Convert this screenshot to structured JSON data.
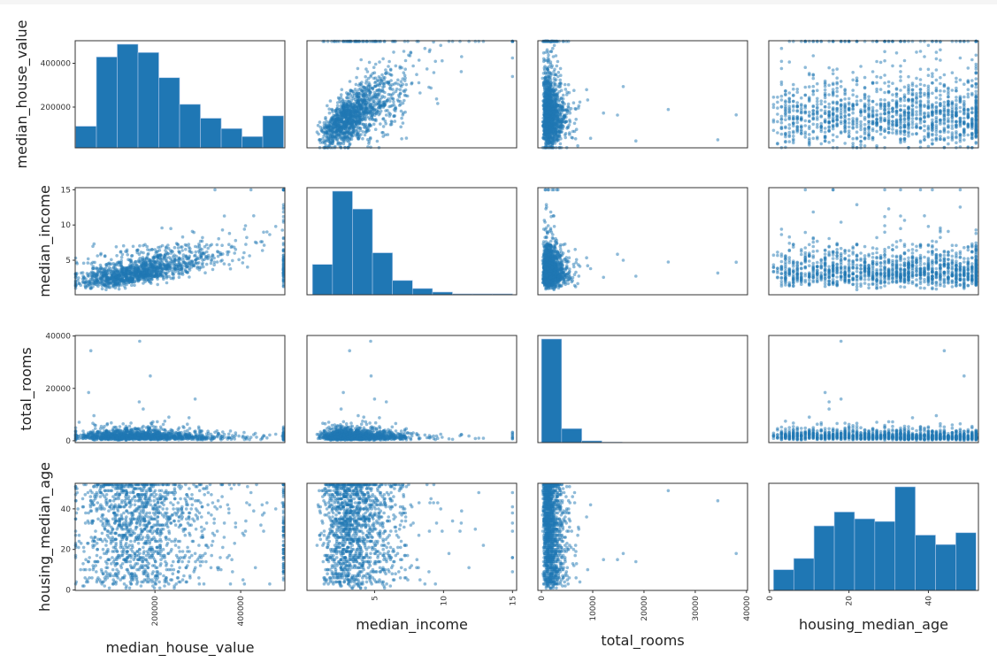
{
  "chart_data": {
    "type": "scatter",
    "layout": "scatter-matrix",
    "diagonal": "histogram",
    "color": "#1f77b4",
    "point_alpha": 0.5,
    "grid": false,
    "variables": [
      {
        "name": "median_house_value",
        "range": [
          14000,
          503000
        ],
        "ticks": [
          200000,
          400000
        ],
        "tick_labels": [
          "200000",
          "400000"
        ],
        "hist_bins": [
          14999,
          500001
        ],
        "hist_counts": [
          862,
          3626,
          4134,
          3803,
          2799,
          1736,
          1181,
          768,
          449,
          1276
        ]
      },
      {
        "name": "median_income",
        "range": [
          0.1,
          15.3
        ],
        "ticks": [
          5,
          10,
          15
        ],
        "tick_labels": [
          "5",
          "10",
          "15"
        ],
        "hist_bins": [
          0.5,
          15.0
        ],
        "hist_counts": [
          2176,
          7424,
          6144,
          3008,
          1024,
          448,
          192,
          64,
          64,
          64
        ]
      },
      {
        "name": "total_rooms",
        "range": [
          -700,
          40200
        ],
        "ticks": [
          0,
          10000,
          20000,
          30000,
          40000
        ],
        "tick_labels": [
          "0",
          "10000",
          "20000",
          "30000",
          "40000"
        ],
        "y_ticks": [
          0,
          20000,
          40000
        ],
        "y_tick_labels": [
          "0",
          "20000",
          "40000"
        ],
        "hist_bins": [
          2,
          39320
        ],
        "hist_counts": [
          17800,
          2400,
          300,
          80,
          30,
          15,
          8,
          4,
          2,
          1
        ]
      },
      {
        "name": "housing_median_age",
        "range": [
          -0.2,
          52.6
        ],
        "ticks": [
          0,
          20,
          40
        ],
        "tick_labels": [
          "0",
          "20",
          "40"
        ],
        "hist_bins": [
          1,
          52
        ],
        "hist_counts": [
          714,
          1102,
          2224,
          2703,
          2468,
          2377,
          3570,
          1907,
          1581,
          1989
        ]
      }
    ],
    "relationships": {
      "median_income_vs_median_house_value": "positive, house value capped at 500001",
      "median_income_cap": 15.0001,
      "housing_median_age_cap": 52
    }
  }
}
